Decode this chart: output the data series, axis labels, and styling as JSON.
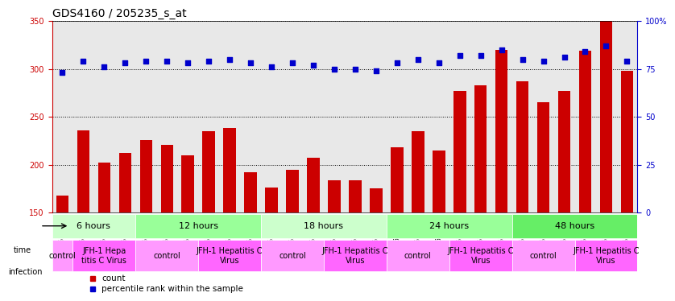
{
  "title": "GDS4160 / 205235_s_at",
  "samples": [
    "GSM523814",
    "GSM523815",
    "GSM523800",
    "GSM523801",
    "GSM523816",
    "GSM523817",
    "GSM523818",
    "GSM523802",
    "GSM523803",
    "GSM523804",
    "GSM523819",
    "GSM523820",
    "GSM523821",
    "GSM523805",
    "GSM523806",
    "GSM523807",
    "GSM523822",
    "GSM523823",
    "GSM523824",
    "GSM523808",
    "GSM523809",
    "GSM523810",
    "GSM523825",
    "GSM523826",
    "GSM523827",
    "GSM523811",
    "GSM523812",
    "GSM523813"
  ],
  "counts": [
    168,
    236,
    202,
    212,
    226,
    221,
    210,
    235,
    238,
    192,
    176,
    195,
    207,
    184,
    184,
    175,
    218,
    235,
    215,
    277,
    283,
    320,
    287,
    265,
    277,
    319,
    350,
    298
  ],
  "percentile": [
    73,
    79,
    76,
    78,
    79,
    79,
    78,
    79,
    80,
    78,
    76,
    78,
    77,
    75,
    75,
    74,
    78,
    80,
    78,
    82,
    82,
    85,
    80,
    79,
    81,
    84,
    87,
    79
  ],
  "ylim_left": [
    150,
    350
  ],
  "ylim_right": [
    0,
    100
  ],
  "yticks_left": [
    150,
    200,
    250,
    300,
    350
  ],
  "yticks_right": [
    0,
    25,
    50,
    75,
    100
  ],
  "ytick_labels_right": [
    "0",
    "25",
    "50",
    "75",
    "100%"
  ],
  "bar_color": "#cc0000",
  "dot_color": "#0000cc",
  "background_color": "#ffffff",
  "grid_color": "#000000",
  "time_groups": [
    {
      "label": "6 hours",
      "start": 0,
      "end": 4,
      "color": "#ccffcc"
    },
    {
      "label": "12 hours",
      "start": 4,
      "end": 10,
      "color": "#99ff99"
    },
    {
      "label": "18 hours",
      "start": 10,
      "end": 16,
      "color": "#ccffcc"
    },
    {
      "label": "24 hours",
      "start": 16,
      "end": 22,
      "color": "#99ff99"
    },
    {
      "label": "48 hours",
      "start": 22,
      "end": 28,
      "color": "#66ee66"
    }
  ],
  "infection_groups": [
    {
      "label": "control",
      "start": 0,
      "end": 1,
      "color": "#ff99ff"
    },
    {
      "label": "JFH-1 Hepa\ntitis C Virus",
      "start": 1,
      "end": 4,
      "color": "#ff66ff"
    },
    {
      "label": "control",
      "start": 4,
      "end": 7,
      "color": "#ff99ff"
    },
    {
      "label": "JFH-1 Hepatitis C\nVirus",
      "start": 7,
      "end": 10,
      "color": "#ff66ff"
    },
    {
      "label": "control",
      "start": 10,
      "end": 13,
      "color": "#ff99ff"
    },
    {
      "label": "JFH-1 Hepatitis C\nVirus",
      "start": 13,
      "end": 16,
      "color": "#ff66ff"
    },
    {
      "label": "control",
      "start": 16,
      "end": 19,
      "color": "#ff99ff"
    },
    {
      "label": "JFH-1 Hepatitis C\nVirus",
      "start": 19,
      "end": 22,
      "color": "#ff66ff"
    },
    {
      "label": "control",
      "start": 22,
      "end": 25,
      "color": "#ff99ff"
    },
    {
      "label": "JFH-1 Hepatitis C\nVirus",
      "start": 25,
      "end": 28,
      "color": "#ff66ff"
    }
  ],
  "legend_count_color": "#cc0000",
  "legend_dot_color": "#0000cc",
  "time_label_fontsize": 8,
  "infection_label_fontsize": 7,
  "tick_label_fontsize": 6.5,
  "title_fontsize": 10
}
